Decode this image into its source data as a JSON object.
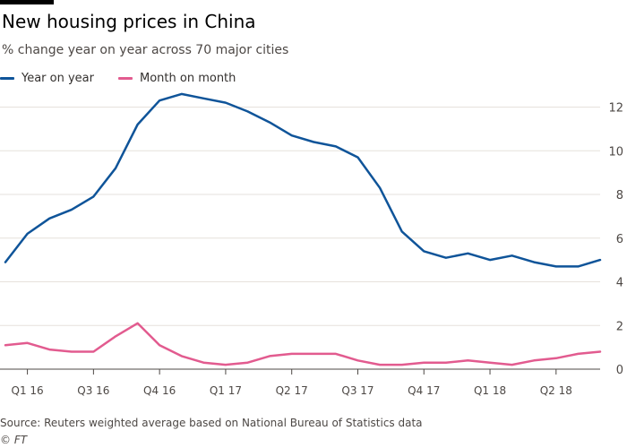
{
  "title": "New housing prices in China",
  "subtitle": "% change year on year across 70 major cities",
  "legend": [
    {
      "label": "Year on year",
      "color": "#0f5499"
    },
    {
      "label": "Month on month",
      "color": "#e25b8f"
    }
  ],
  "footer": {
    "source": "Source: Reuters weighted average based on National Bureau of Statistics data",
    "credit": "© FT"
  },
  "chart_data": {
    "type": "line",
    "x_tick_labels": [
      "Q1 16",
      "Q3 16",
      "Q4 16",
      "Q1 17",
      "Q2 17",
      "Q3 17",
      "Q4 17",
      "Q1 18",
      "Q2 18"
    ],
    "y_ticks": [
      0,
      2,
      4,
      6,
      8,
      10,
      12
    ],
    "ylim": [
      0,
      12.8
    ],
    "grid": true,
    "legend_position": "top-left",
    "y_axis_position": "right",
    "series": [
      {
        "name": "Year on year",
        "color": "#0f5499",
        "values": [
          4.9,
          6.2,
          6.9,
          7.3,
          7.9,
          9.2,
          11.2,
          12.3,
          12.6,
          12.4,
          12.2,
          11.8,
          11.3,
          10.7,
          10.4,
          10.2,
          9.7,
          8.3,
          6.3,
          5.4,
          5.1,
          5.3,
          5.0,
          5.2,
          4.9,
          4.7,
          4.7,
          5.0
        ]
      },
      {
        "name": "Month on month",
        "color": "#e25b8f",
        "values": [
          1.1,
          1.2,
          0.9,
          0.8,
          0.8,
          1.5,
          2.1,
          1.1,
          0.6,
          0.3,
          0.2,
          0.3,
          0.6,
          0.7,
          0.7,
          0.7,
          0.4,
          0.2,
          0.2,
          0.3,
          0.3,
          0.4,
          0.3,
          0.2,
          0.4,
          0.5,
          0.7,
          0.8
        ]
      }
    ]
  }
}
